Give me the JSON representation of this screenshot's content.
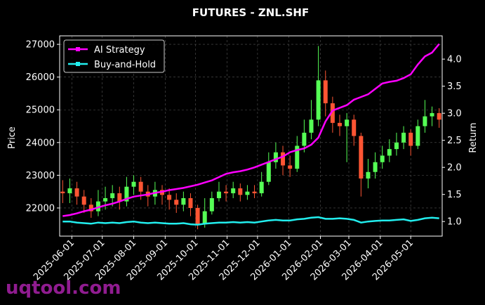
{
  "chart_data": {
    "type": "candlestick",
    "title": "FUTURES - ZNL.SHF",
    "ylabel": "Price",
    "y2label": "Return",
    "watermark": "uqtool.com",
    "up_color": "#55ff55",
    "down_color": "#ff5533",
    "grid": true,
    "legend": "upper left",
    "xlim": [
      "2025-05-20",
      "2026-06-01"
    ],
    "xticks": [
      "2025-06-01",
      "2025-07-01",
      "2025-08-01",
      "2025-09-01",
      "2025-10-01",
      "2025-11-01",
      "2025-12-01",
      "2026-01-01",
      "2026-02-01",
      "2026-03-01",
      "2026-04-01",
      "2026-05-01"
    ],
    "ylim": [
      21140,
      27260
    ],
    "yticks": [
      22000,
      23000,
      24000,
      25000,
      26000,
      27000
    ],
    "y2lim": [
      0.73,
      4.43
    ],
    "y2ticks": [
      {
        "value": 1,
        "label": "1.0"
      },
      1.5,
      {
        "value": 2,
        "label": "2.0"
      },
      2.5,
      {
        "value": 3,
        "label": "3.0"
      },
      3.5,
      {
        "value": 4,
        "label": "4.0"
      }
    ],
    "x": [
      "2025-05-23",
      "2025-05-30",
      "2025-06-06",
      "2025-06-13",
      "2025-06-20",
      "2025-06-27",
      "2025-07-04",
      "2025-07-11",
      "2025-07-18",
      "2025-07-25",
      "2025-08-01",
      "2025-08-08",
      "2025-08-15",
      "2025-08-22",
      "2025-08-29",
      "2025-09-05",
      "2025-09-12",
      "2025-09-19",
      "2025-09-26",
      "2025-10-03",
      "2025-10-10",
      "2025-10-17",
      "2025-10-24",
      "2025-10-31",
      "2025-11-07",
      "2025-11-14",
      "2025-11-21",
      "2025-11-28",
      "2025-12-05",
      "2025-12-12",
      "2025-12-19",
      "2025-12-26",
      "2026-01-02",
      "2026-01-09",
      "2026-01-16",
      "2026-01-23",
      "2026-01-30",
      "2026-02-06",
      "2026-02-13",
      "2026-02-20",
      "2026-02-27",
      "2026-03-06",
      "2026-03-13",
      "2026-03-20",
      "2026-03-27",
      "2026-04-03",
      "2026-04-10",
      "2026-04-17",
      "2026-04-24",
      "2026-05-01",
      "2026-05-08",
      "2026-05-15",
      "2026-05-22",
      "2026-05-29"
    ],
    "open": [
      22500,
      22450,
      22600,
      22350,
      22100,
      21900,
      22200,
      22300,
      22450,
      22200,
      22650,
      22800,
      22500,
      22350,
      22550,
      22400,
      22250,
      22100,
      22300,
      22000,
      21500,
      21900,
      22300,
      22500,
      22450,
      22600,
      22400,
      22500,
      22450,
      22800,
      23400,
      23700,
      23300,
      23200,
      23900,
      24300,
      24700,
      25900,
      25200,
      24600,
      24500,
      24700,
      24200,
      22900,
      23100,
      23400,
      23600,
      23800,
      24000,
      24300,
      23900,
      24500,
      24800,
      24900
    ],
    "high": [
      22850,
      22900,
      22800,
      22550,
      22300,
      22550,
      22650,
      22700,
      22650,
      22950,
      23000,
      22950,
      22700,
      22800,
      22700,
      22600,
      22450,
      22500,
      22450,
      22100,
      22300,
      22500,
      22800,
      22700,
      22800,
      22750,
      22700,
      22700,
      23100,
      23700,
      24000,
      23900,
      23600,
      24200,
      24700,
      25300,
      26950,
      26200,
      25400,
      24850,
      24900,
      24850,
      24300,
      23500,
      23700,
      23900,
      24100,
      24300,
      24500,
      24400,
      24700,
      25300,
      25100,
      25050
    ],
    "low": [
      22150,
      22150,
      22100,
      21850,
      21700,
      21750,
      21950,
      22050,
      21950,
      22050,
      22400,
      22250,
      22050,
      22100,
      22100,
      21950,
      21850,
      21900,
      21750,
      21350,
      21400,
      21800,
      22200,
      22200,
      22300,
      22200,
      22250,
      22300,
      22350,
      22700,
      23200,
      23000,
      22950,
      23100,
      23700,
      24100,
      24500,
      24800,
      24300,
      24200,
      23400,
      23900,
      22350,
      22600,
      22900,
      23200,
      23400,
      23600,
      23800,
      23600,
      23800,
      24300,
      24500,
      24450
    ],
    "close": [
      22450,
      22600,
      22350,
      22100,
      21900,
      22200,
      22300,
      22450,
      22200,
      22650,
      22800,
      22500,
      22350,
      22550,
      22400,
      22250,
      22100,
      22300,
      22000,
      21500,
      21900,
      22300,
      22500,
      22450,
      22600,
      22400,
      22500,
      22450,
      22800,
      23400,
      23700,
      23300,
      23200,
      23900,
      24300,
      24700,
      25900,
      25200,
      24600,
      24500,
      24700,
      24200,
      22900,
      23100,
      23400,
      23600,
      23800,
      24000,
      24300,
      23900,
      24500,
      24800,
      24900,
      24700
    ],
    "series": [
      {
        "name": "AI Strategy",
        "color": "#ff00ff",
        "axis": "y2",
        "values": [
          1.1,
          1.12,
          1.15,
          1.19,
          1.22,
          1.26,
          1.3,
          1.33,
          1.37,
          1.42,
          1.46,
          1.48,
          1.5,
          1.53,
          1.55,
          1.58,
          1.6,
          1.62,
          1.65,
          1.68,
          1.72,
          1.76,
          1.82,
          1.88,
          1.91,
          1.93,
          1.96,
          2.0,
          2.05,
          2.1,
          2.15,
          2.2,
          2.28,
          2.32,
          2.35,
          2.42,
          2.55,
          2.85,
          3.05,
          3.1,
          3.15,
          3.25,
          3.3,
          3.35,
          3.45,
          3.55,
          3.58,
          3.6,
          3.65,
          3.72,
          3.9,
          4.05,
          4.12,
          4.28
        ]
      },
      {
        "name": "Buy-and-Hold",
        "color": "#22eeee",
        "axis": "y2",
        "values": [
          1.0,
          1.0,
          0.98,
          0.97,
          0.96,
          0.98,
          0.97,
          0.98,
          0.97,
          0.99,
          1.0,
          0.98,
          0.97,
          0.98,
          0.97,
          0.96,
          0.96,
          0.97,
          0.95,
          0.94,
          0.96,
          0.97,
          0.98,
          0.98,
          0.99,
          0.98,
          0.99,
          0.98,
          1.0,
          1.02,
          1.03,
          1.02,
          1.02,
          1.04,
          1.05,
          1.07,
          1.08,
          1.05,
          1.05,
          1.06,
          1.05,
          1.03,
          0.98,
          1.0,
          1.01,
          1.02,
          1.02,
          1.03,
          1.04,
          1.01,
          1.03,
          1.06,
          1.07,
          1.06
        ]
      }
    ]
  }
}
